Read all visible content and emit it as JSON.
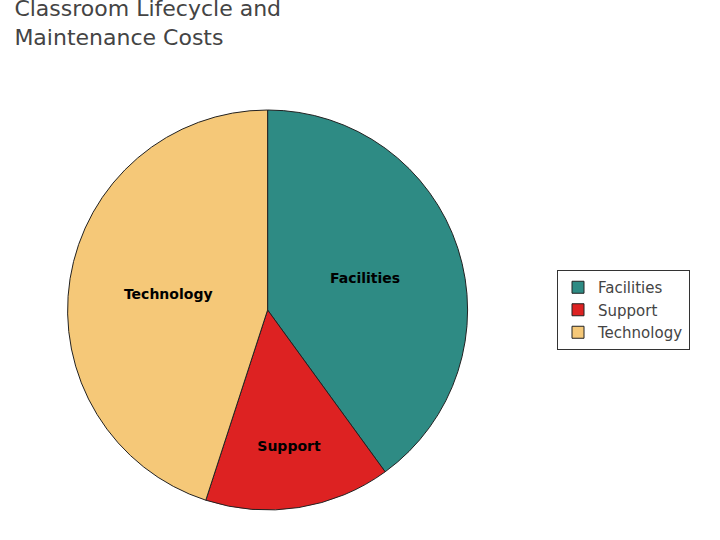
{
  "chart_data": {
    "type": "pie",
    "title": "Classroom Lifecycle and",
    "subtitle": "Maintenance Costs",
    "categories": [
      "Facilities",
      "Support",
      "Technology"
    ],
    "values": [
      40,
      15,
      45
    ],
    "colors": [
      "#2e8b84",
      "#dd2222",
      "#f5c878"
    ],
    "data_labels": true,
    "legend": "right"
  }
}
